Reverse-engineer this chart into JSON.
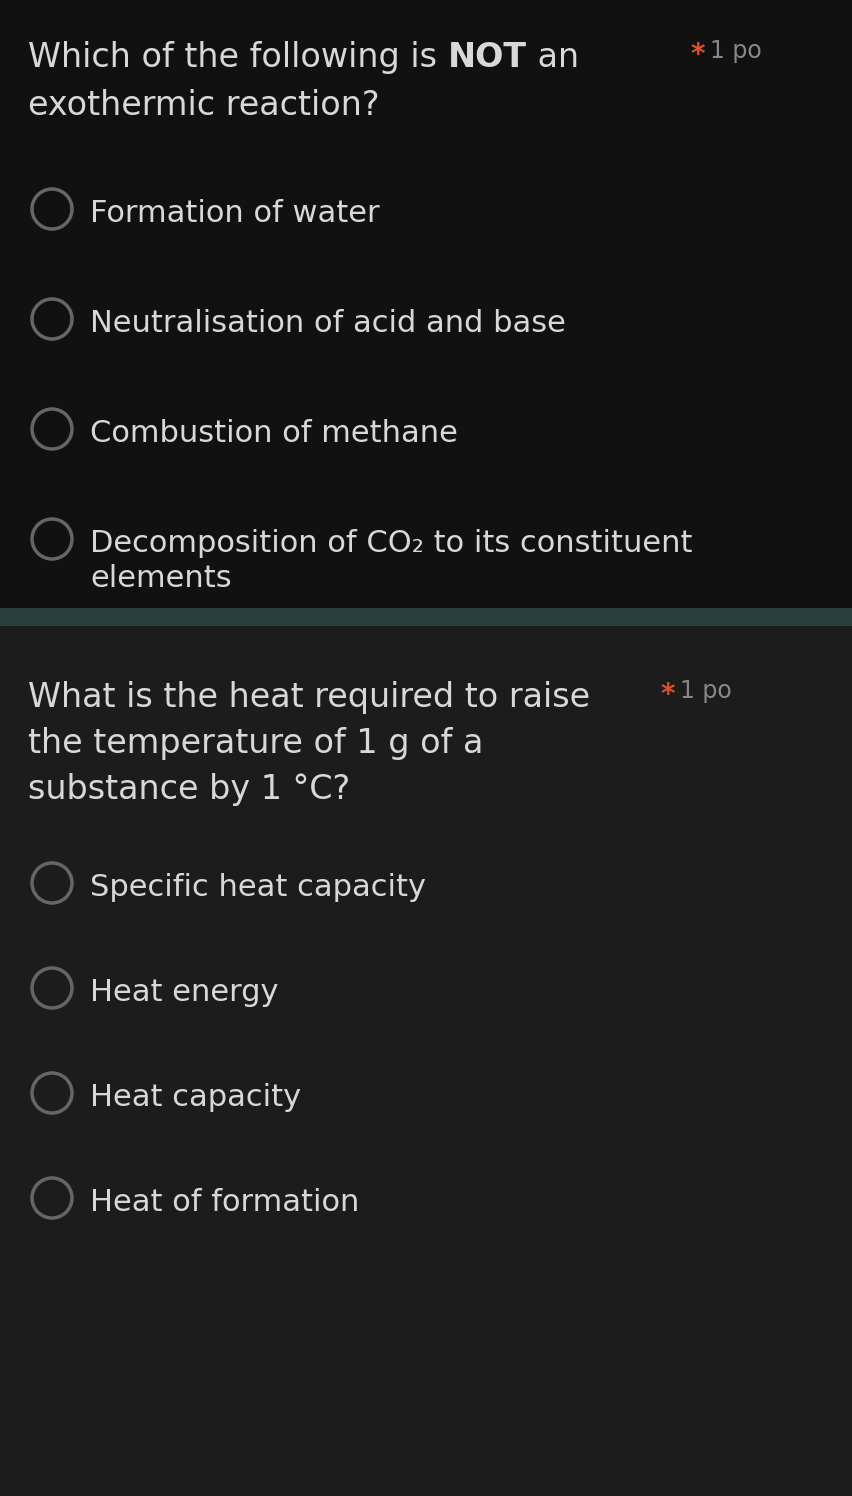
{
  "bg_color": "#111111",
  "bg_color2": "#1e1e1e",
  "divider_color": "#2a3f3f",
  "text_color": "#d8d8d8",
  "star_color": "#e05030",
  "points_color": "#888888",
  "circle_color": "#666666",
  "q1_title_line1_normal1": "Which of the following is ",
  "q1_title_line1_bold": "NOT",
  "q1_title_line1_normal2": " an",
  "q1_title_line2": "exothermic reaction?",
  "q1_points": "1 po",
  "q1_options": [
    "Formation of water",
    "Neutralisation of acid and base",
    "Combustion of methane",
    "Decomposition of CO₂ to its constituent"
  ],
  "q1_option4_line2": "elements",
  "q2_title_line1": "What is the heat required to raise",
  "q2_title_line2": "the temperature of 1 g of a",
  "q2_title_line3": "substance by 1 °C?",
  "q2_points": "1 po",
  "q2_options": [
    "Specific heat capacity",
    "Heat energy",
    "Heat capacity",
    "Heat of formation"
  ],
  "font_size_question": 24,
  "font_size_option": 22,
  "font_size_points": 17,
  "fig_width": 8.53,
  "fig_height": 14.96,
  "dpi": 100
}
